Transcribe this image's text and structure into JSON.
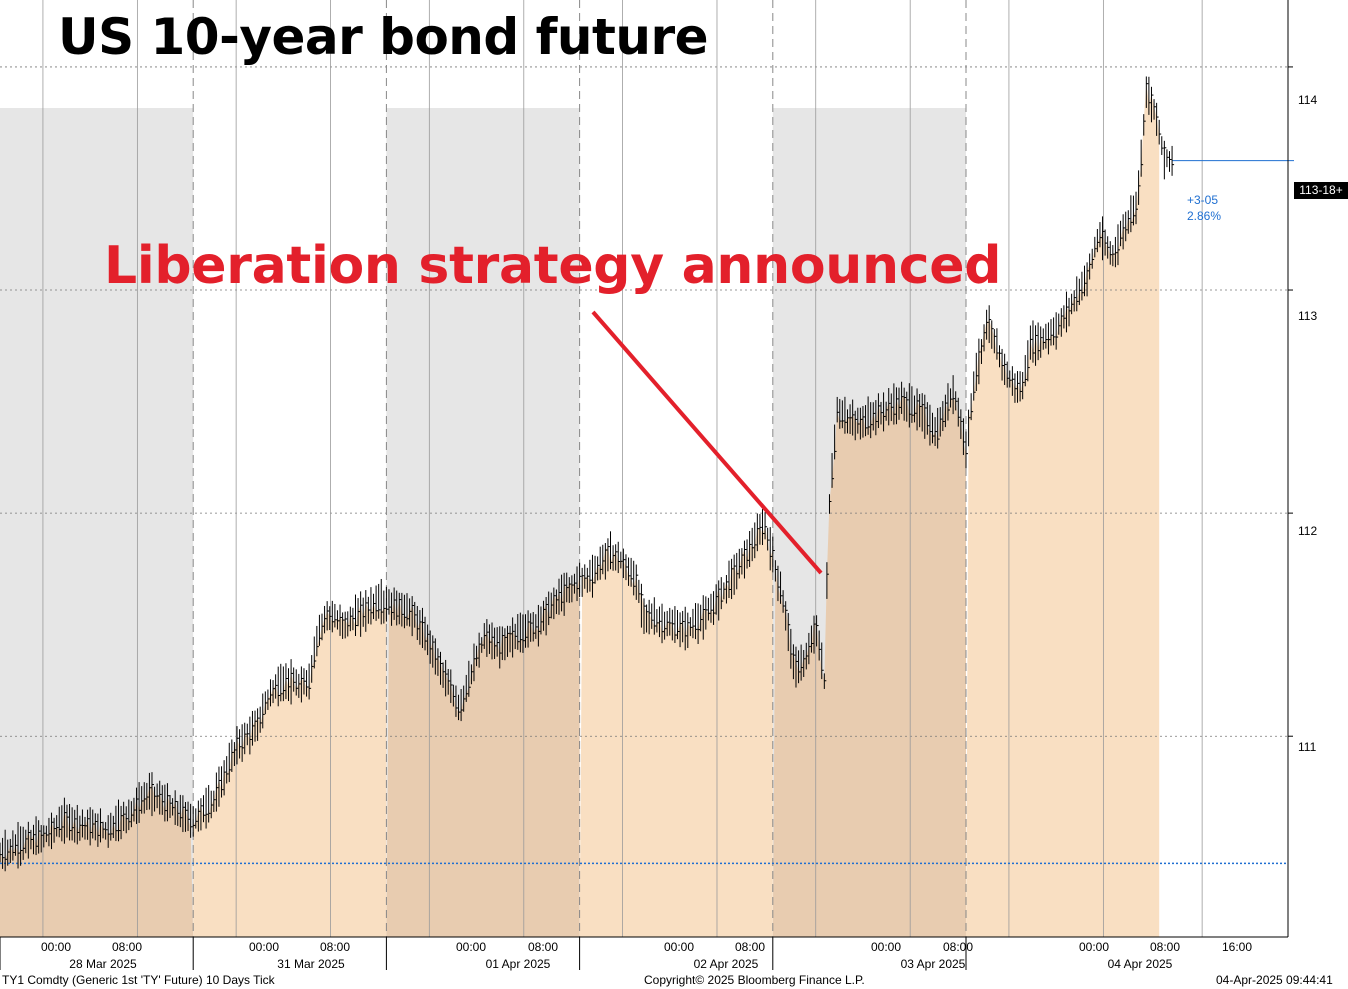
{
  "title": "US 10-year bond future",
  "annotation": "Liberation strategy announced",
  "footer": {
    "left": "TY1 Comdty (Generic 1st 'TY' Future) 10 Days  Tick",
    "center": "Copyright© 2025 Bloomberg Finance L.P.",
    "right": "04-Apr-2025 09:44:41"
  },
  "last_price_label": "113-18+",
  "change_points": "+3-05",
  "change_percent": "2.86%",
  "colors": {
    "area_fill": "#f9dfc2",
    "area_fill_shaded": "#e8ccb0",
    "session_shade": "#e6e6e6",
    "bar_color": "#000000",
    "annotation_red": "#e3202b",
    "reference_blue": "#1f6fd1"
  },
  "chart_data": {
    "type": "bar",
    "subtype": "OHLC tick bars with area fill",
    "title": "US 10-year bond future",
    "y_ticks": [
      "111",
      "112",
      "113",
      "114"
    ],
    "ylim": [
      110.1,
      114.3
    ],
    "y_axis_side": "right",
    "grid": true,
    "x_time_labels": [
      "00:00",
      "08:00",
      "00:00",
      "08:00",
      "00:00",
      "08:00",
      "00:00",
      "08:00",
      "00:00",
      "08:00",
      "00:00",
      "08:00",
      "16:00"
    ],
    "x_date_labels": [
      "28 Mar 2025",
      "31 Mar 2025",
      "01 Apr 2025",
      "02 Apr 2025",
      "03 Apr 2025",
      "04 Apr 2025"
    ],
    "reference_line": 110.43,
    "last_price": 113.58,
    "series": [
      {
        "points": [
          [
            0,
            110.47
          ],
          [
            5,
            110.52
          ],
          [
            10,
            110.55
          ],
          [
            15,
            110.62
          ],
          [
            20,
            110.6
          ],
          [
            25,
            110.58
          ],
          [
            30,
            110.65
          ],
          [
            35,
            110.75
          ],
          [
            40,
            110.68
          ],
          [
            45,
            110.62
          ],
          [
            50,
            110.72
          ],
          [
            55,
            110.95
          ],
          [
            60,
            111.05
          ],
          [
            63,
            111.2
          ],
          [
            67,
            111.25
          ],
          [
            70,
            111.22
          ],
          [
            72,
            111.25
          ],
          [
            74,
            111.45
          ],
          [
            76,
            111.55
          ],
          [
            80,
            111.5
          ],
          [
            84,
            111.55
          ],
          [
            88,
            111.6
          ],
          [
            92,
            111.58
          ],
          [
            96,
            111.55
          ],
          [
            100,
            111.42
          ],
          [
            104,
            111.25
          ],
          [
            107,
            111.12
          ],
          [
            110,
            111.3
          ],
          [
            113,
            111.45
          ],
          [
            116,
            111.4
          ],
          [
            120,
            111.45
          ],
          [
            125,
            111.5
          ],
          [
            130,
            111.62
          ],
          [
            135,
            111.7
          ],
          [
            138,
            111.72
          ],
          [
            140,
            111.78
          ],
          [
            142,
            111.82
          ],
          [
            144,
            111.8
          ],
          [
            146,
            111.75
          ],
          [
            148,
            111.7
          ],
          [
            150,
            111.55
          ],
          [
            155,
            111.5
          ],
          [
            160,
            111.48
          ],
          [
            165,
            111.55
          ],
          [
            170,
            111.7
          ],
          [
            175,
            111.85
          ],
          [
            178,
            111.95
          ],
          [
            180,
            111.8
          ],
          [
            183,
            111.55
          ],
          [
            185,
            111.3
          ],
          [
            188,
            111.35
          ],
          [
            190,
            111.5
          ],
          [
            192,
            111.25
          ],
          [
            193,
            112.0
          ],
          [
            195,
            112.45
          ],
          [
            200,
            112.4
          ],
          [
            205,
            112.45
          ],
          [
            210,
            112.5
          ],
          [
            215,
            112.45
          ],
          [
            218,
            112.35
          ],
          [
            222,
            112.55
          ],
          [
            225,
            112.3
          ],
          [
            227,
            112.6
          ],
          [
            230,
            112.85
          ],
          [
            232,
            112.75
          ],
          [
            235,
            112.6
          ],
          [
            238,
            112.55
          ],
          [
            240,
            112.75
          ],
          [
            243,
            112.78
          ],
          [
            246,
            112.82
          ],
          [
            250,
            112.95
          ],
          [
            253,
            113.05
          ],
          [
            256,
            113.25
          ],
          [
            259,
            113.15
          ],
          [
            262,
            113.28
          ],
          [
            265,
            113.4
          ],
          [
            267,
            113.9
          ],
          [
            269,
            113.8
          ],
          [
            271,
            113.6
          ],
          [
            273,
            113.58
          ]
        ]
      }
    ]
  }
}
